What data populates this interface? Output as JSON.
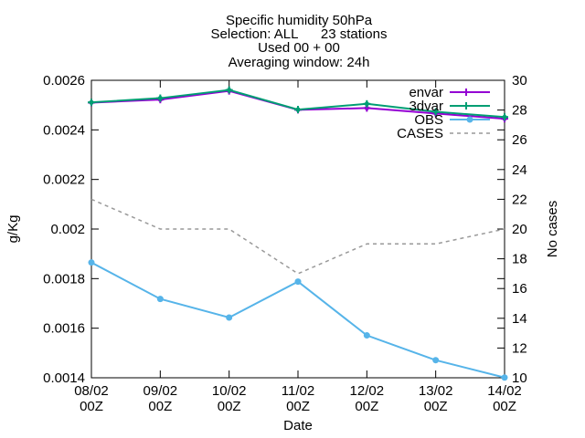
{
  "chart_data": {
    "type": "line",
    "title": [
      "Specific humidity 50hPa",
      "Selection: ALL      23 stations",
      "Used 00 + 00",
      "Averaging window: 24h"
    ],
    "xlabel": "Date",
    "ylabel": "g/Kg",
    "y2label": "No cases",
    "categories": [
      [
        "08/02",
        "00Z"
      ],
      [
        "09/02",
        "00Z"
      ],
      [
        "10/02",
        "00Z"
      ],
      [
        "11/02",
        "00Z"
      ],
      [
        "12/02",
        "00Z"
      ],
      [
        "13/02",
        "00Z"
      ],
      [
        "14/02",
        "00Z"
      ]
    ],
    "ylim": [
      0.0014,
      0.0026
    ],
    "y_ticks": [
      "0.0014",
      "0.0016",
      "0.0018",
      "0.002",
      "0.0022",
      "0.0024",
      "0.0026"
    ],
    "y2lim": [
      10,
      30
    ],
    "y2_ticks": [
      "10",
      "12",
      "14",
      "16",
      "18",
      "20",
      "22",
      "24",
      "26",
      "28",
      "30"
    ],
    "grid": false,
    "legend_position": "top-right",
    "series": [
      {
        "name": "envar",
        "axis": "y",
        "color": "#9400d3",
        "style": "solid",
        "marker": "plus",
        "values": [
          0.00251,
          0.002522,
          0.002557,
          0.002481,
          0.002488,
          0.002466,
          0.002445
        ]
      },
      {
        "name": "3dvar",
        "axis": "y",
        "color": "#009e73",
        "style": "solid",
        "marker": "plus",
        "values": [
          0.002511,
          0.002528,
          0.002561,
          0.002482,
          0.002505,
          0.002473,
          0.002452
        ]
      },
      {
        "name": "OBS",
        "axis": "y",
        "color": "#56b4e9",
        "style": "solid",
        "marker": "dot",
        "values": [
          0.001865,
          0.001718,
          0.001643,
          0.001788,
          0.001571,
          0.001471,
          0.001401
        ]
      },
      {
        "name": "CASES",
        "axis": "y2",
        "color": "#999999",
        "style": "dashed",
        "marker": "none",
        "values": [
          22,
          20,
          20,
          17,
          19,
          19,
          20
        ]
      }
    ]
  }
}
